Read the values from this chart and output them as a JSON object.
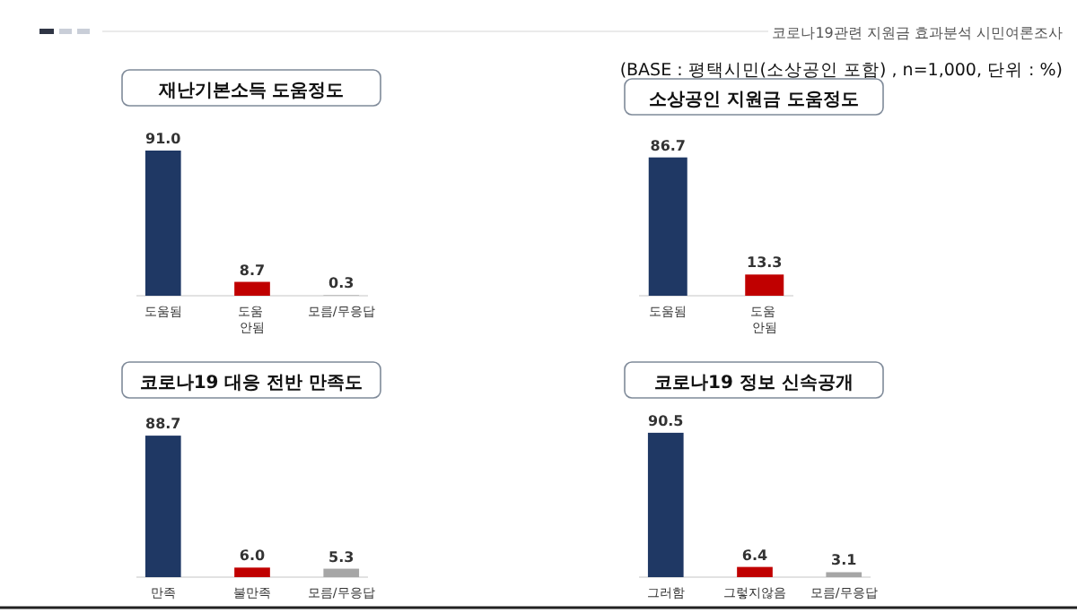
{
  "chart_data": [
    {
      "type": "bar",
      "title": "재난기본소득 도움정도",
      "categories": [
        "도움됨",
        "도움 안됨",
        "모름/무응답"
      ],
      "values": [
        91.0,
        8.7,
        0.3
      ],
      "colors": [
        "#1f3864",
        "#c00000",
        "#a6a6a6"
      ],
      "value_labels": [
        "91.0",
        "8.7",
        "0.3"
      ],
      "annotations": [
        "코로나19관련 지원금 효과분석 시민여론조사",
        "(BASE : 평택시민(소상공인 포함) , n=1,000, 단위 : %)"
      ]
    },
    {
      "type": "bar",
      "title": "소상공인 지원금 도움정도",
      "categories": [
        "도움됨",
        "도움 안됨"
      ],
      "values": [
        86.7,
        13.3
      ],
      "colors": [
        "#1f3864",
        "#c00000"
      ],
      "value_labels": [
        "86.7",
        "13.3"
      ]
    },
    {
      "type": "bar",
      "title": "코로나19 대응 전반 만족도",
      "categories": [
        "만족",
        "불만족",
        "모름/무응답"
      ],
      "values": [
        88.7,
        6.0,
        5.3
      ],
      "colors": [
        "#1f3864",
        "#c00000",
        "#a6a6a6"
      ],
      "value_labels": [
        "88.7",
        "6.0",
        "5.3"
      ]
    },
    {
      "type": "bar",
      "title": "코로나19 정보 신속공개",
      "categories": [
        "그러함",
        "그렇지않음",
        "모름/무응답"
      ],
      "values": [
        90.5,
        6.4,
        3.1
      ],
      "colors": [
        "#1f3864",
        "#c00000",
        "#a6a6a6"
      ],
      "value_labels": [
        "90.5",
        "6.4",
        "3.1"
      ]
    }
  ]
}
